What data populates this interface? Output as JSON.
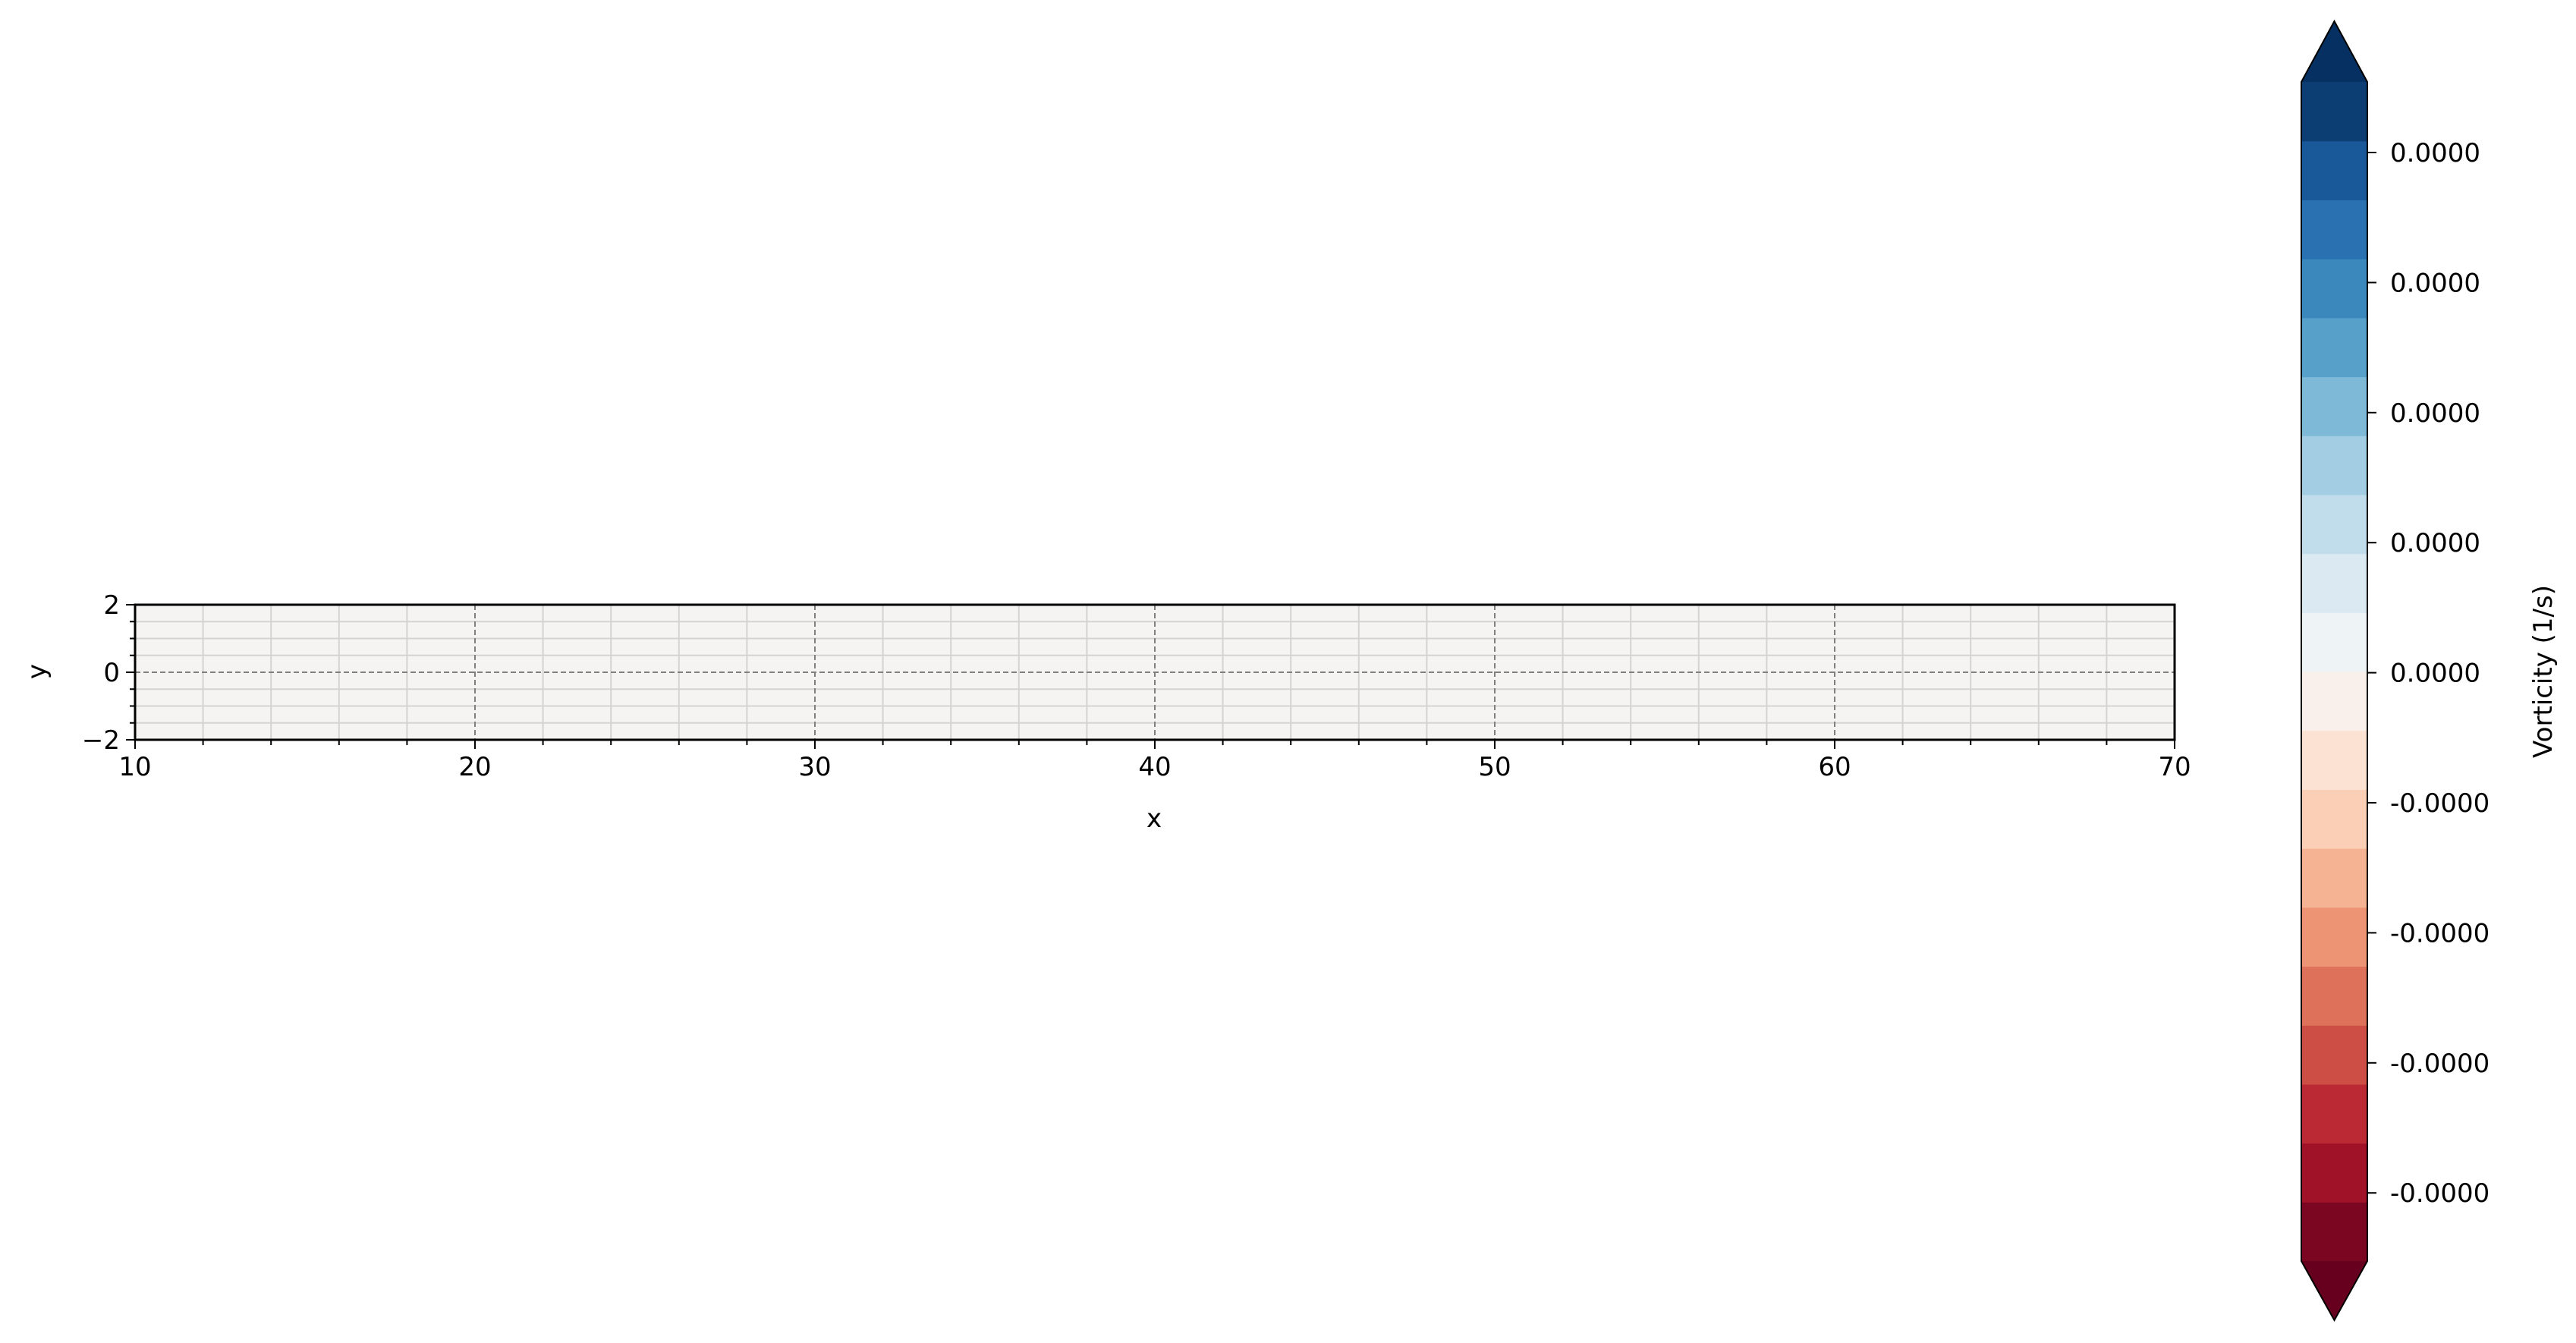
{
  "chart_data": {
    "type": "heatmap",
    "title": "",
    "xlabel": "x",
    "ylabel": "y",
    "xlim": [
      10,
      70
    ],
    "ylim": [
      -2,
      2
    ],
    "x_ticks": [
      10,
      20,
      30,
      40,
      50,
      60,
      70
    ],
    "y_ticks": [
      -2,
      0,
      2
    ],
    "x_tick_labels": [
      "10",
      "20",
      "30",
      "40",
      "50",
      "60",
      "70"
    ],
    "y_tick_labels": [
      "−2",
      "0",
      "2"
    ],
    "x_minor_step": 2,
    "y_minor_step": 0.5,
    "grid": true,
    "field_value": 0.0,
    "field_color": "#f5f4f2",
    "colorbar": {
      "label": "Vorticity (1/s)",
      "colormap": "RdBu",
      "extend": "both",
      "levels": 20,
      "tick_labels": [
        "0.0000",
        "0.0000",
        "0.0000",
        "0.0000",
        "0.0000",
        "-0.0000",
        "-0.0000",
        "-0.0000",
        "-0.0000"
      ]
    }
  },
  "colors": {
    "grid_major": "#808080",
    "grid_minor": "#d3d3d3",
    "axes": "#000000",
    "rdbu": [
      "#67001f",
      "#b2182b",
      "#d6604d",
      "#f4a582",
      "#fddbc7",
      "#f7f7f7",
      "#d1e5f0",
      "#92c5de",
      "#4393c3",
      "#2166ac",
      "#053061"
    ]
  }
}
